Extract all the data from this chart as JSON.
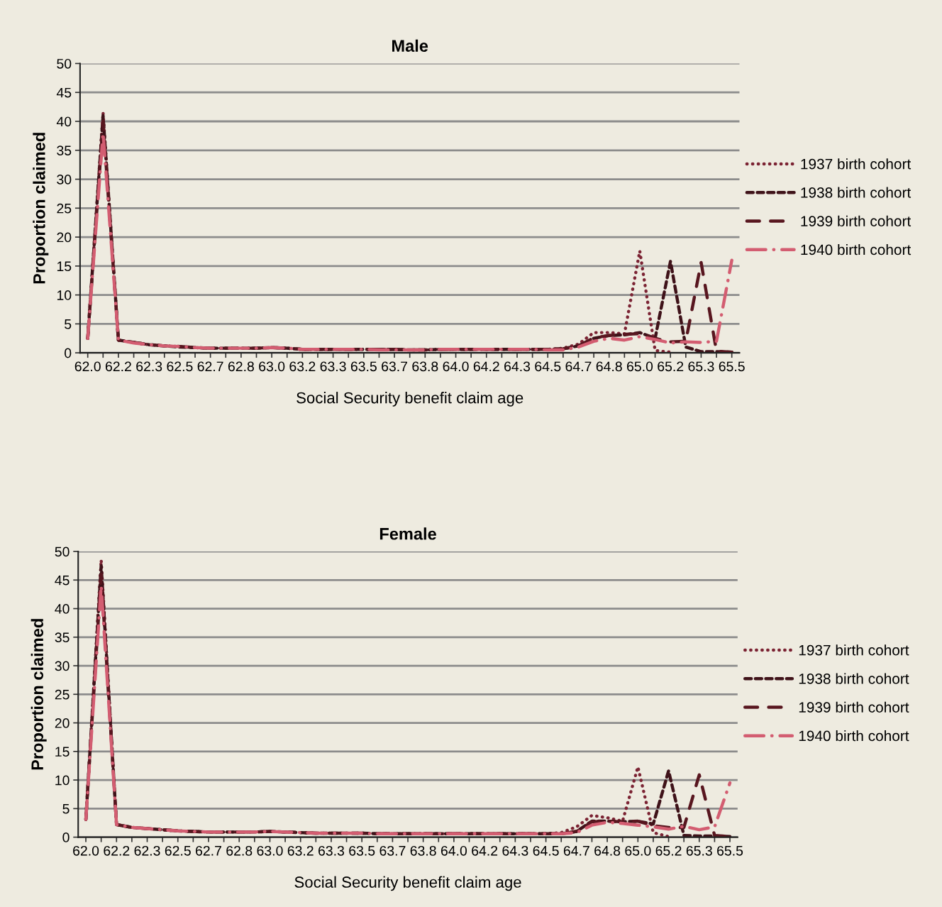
{
  "chart_data": [
    {
      "type": "line",
      "title": "Male",
      "xlabel": "Social Security benefit claim age",
      "ylabel": "Proportion claimed",
      "categories": [
        "62.0",
        null,
        "62.2",
        null,
        "62.3",
        null,
        "62.5",
        null,
        "62.7",
        null,
        "62.8",
        null,
        "63.0",
        null,
        "63.2",
        null,
        "63.3",
        null,
        "63.5",
        null,
        "63.7",
        null,
        "63.8",
        null,
        "64.0",
        null,
        "64.2",
        null,
        "64.3",
        null,
        "64.5",
        null,
        "64.7",
        null,
        "64.8",
        null,
        "65.0",
        null,
        "65.2",
        null,
        "65.3",
        null,
        "65.5"
      ],
      "ylim": [
        0,
        50
      ],
      "yticks": [
        0,
        5,
        10,
        15,
        20,
        25,
        30,
        35,
        40,
        45,
        50
      ],
      "grid": "y",
      "legend": "right",
      "marker": "none",
      "series": [
        {
          "name": "1937 birth cohort",
          "color": "#7b2333",
          "line_style": "dotted",
          "values": [
            2.5,
            41.5,
            2.2,
            1.8,
            1.4,
            1.2,
            1.1,
            0.9,
            0.8,
            0.8,
            0.8,
            0.8,
            0.9,
            0.8,
            0.6,
            0.6,
            0.6,
            0.6,
            0.6,
            0.6,
            0.6,
            0.5,
            0.5,
            0.6,
            0.6,
            0.6,
            0.6,
            0.6,
            0.6,
            0.6,
            0.6,
            0.8,
            1.5,
            3.5,
            3.5,
            3.3,
            17.6,
            0.4,
            0.1,
            null,
            null,
            null,
            null
          ]
        },
        {
          "name": "1938 birth cohort",
          "color": "#3f1219",
          "line_style": "dashed",
          "values": [
            2.5,
            41,
            2.2,
            1.8,
            1.4,
            1.2,
            1.0,
            0.9,
            0.8,
            0.8,
            0.8,
            0.8,
            0.9,
            0.8,
            0.6,
            0.6,
            0.6,
            0.6,
            0.6,
            0.6,
            0.6,
            0.5,
            0.5,
            0.6,
            0.6,
            0.6,
            0.6,
            0.6,
            0.6,
            0.6,
            0.6,
            0.7,
            1.2,
            2.5,
            3.0,
            3.1,
            3.5,
            2.5,
            15.8,
            1.0,
            0.2,
            0.2,
            0.1
          ]
        },
        {
          "name": "1939 birth cohort",
          "color": "#58161f",
          "line_style": "dashed",
          "values": [
            2.5,
            40,
            2.2,
            1.8,
            1.4,
            1.2,
            1.1,
            0.9,
            0.8,
            0.8,
            0.8,
            0.8,
            0.9,
            0.8,
            0.6,
            0.6,
            0.6,
            0.6,
            0.6,
            0.6,
            0.6,
            0.5,
            0.5,
            0.6,
            0.6,
            0.6,
            0.6,
            0.6,
            0.6,
            0.6,
            0.6,
            0.7,
            1.2,
            2.6,
            3.0,
            3.2,
            3.3,
            2.5,
            1.9,
            2.0,
            15.6,
            0.3,
            0.1
          ]
        },
        {
          "name": "1940 birth cohort",
          "color": "#d35d71",
          "line_style": "dashed",
          "values": [
            2.5,
            38,
            2.2,
            1.7,
            1.4,
            1.2,
            1.1,
            0.9,
            0.8,
            0.8,
            0.8,
            0.8,
            0.9,
            0.8,
            0.6,
            0.6,
            0.6,
            0.6,
            0.6,
            0.5,
            0.5,
            0.5,
            0.5,
            0.6,
            0.6,
            0.6,
            0.6,
            0.6,
            0.6,
            0.6,
            0.5,
            0.5,
            1.0,
            2.0,
            2.5,
            2.2,
            2.8,
            2.3,
            1.7,
            1.9,
            1.8,
            2.0,
            16
          ]
        }
      ]
    },
    {
      "type": "line",
      "title": "Female",
      "xlabel": "Social Security benefit claim age",
      "ylabel": "Proportion claimed",
      "categories": [
        "62.0",
        null,
        "62.2",
        null,
        "62.3",
        null,
        "62.5",
        null,
        "62.7",
        null,
        "62.8",
        null,
        "63.0",
        null,
        "63.2",
        null,
        "63.3",
        null,
        "63.5",
        null,
        "63.7",
        null,
        "63.8",
        null,
        "64.0",
        null,
        "64.2",
        null,
        "64.3",
        null,
        "64.5",
        null,
        "64.7",
        null,
        "64.8",
        null,
        "65.0",
        null,
        "65.2",
        null,
        "65.3",
        null,
        "65.5"
      ],
      "ylim": [
        0,
        50
      ],
      "yticks": [
        0,
        5,
        10,
        15,
        20,
        25,
        30,
        35,
        40,
        45,
        50
      ],
      "grid": "y",
      "legend": "right",
      "marker": "none",
      "series": [
        {
          "name": "1937 birth cohort",
          "color": "#7b2333",
          "line_style": "dotted",
          "values": [
            3.1,
            48.5,
            2.2,
            1.7,
            1.5,
            1.3,
            1.1,
            1.0,
            0.9,
            0.9,
            0.9,
            0.9,
            1.0,
            0.9,
            0.8,
            0.7,
            0.7,
            0.7,
            0.7,
            0.6,
            0.6,
            0.6,
            0.6,
            0.6,
            0.6,
            0.6,
            0.6,
            0.6,
            0.6,
            0.6,
            0.6,
            0.8,
            1.8,
            3.8,
            3.4,
            2.8,
            12.3,
            0.8,
            0.1,
            null,
            null,
            null,
            null
          ]
        },
        {
          "name": "1938 birth cohort",
          "color": "#3f1219",
          "line_style": "dashed",
          "values": [
            3.1,
            47.5,
            2.2,
            1.7,
            1.5,
            1.3,
            1.1,
            1.0,
            0.9,
            0.9,
            0.9,
            0.9,
            1.0,
            0.9,
            0.8,
            0.7,
            0.7,
            0.7,
            0.7,
            0.6,
            0.6,
            0.6,
            0.6,
            0.6,
            0.6,
            0.6,
            0.6,
            0.6,
            0.6,
            0.6,
            0.6,
            0.6,
            1.0,
            2.8,
            2.8,
            2.7,
            2.8,
            2.3,
            11.6,
            0.3,
            0.2,
            0.2,
            0.1
          ]
        },
        {
          "name": "1939 birth cohort",
          "color": "#58161f",
          "line_style": "dashed",
          "values": [
            3.1,
            46,
            2.2,
            1.7,
            1.5,
            1.3,
            1.1,
            1.0,
            0.9,
            0.9,
            0.9,
            0.9,
            1.0,
            0.9,
            0.8,
            0.7,
            0.7,
            0.7,
            0.7,
            0.6,
            0.6,
            0.6,
            0.6,
            0.6,
            0.6,
            0.6,
            0.6,
            0.6,
            0.6,
            0.6,
            0.6,
            0.6,
            1.0,
            2.7,
            2.8,
            2.7,
            2.8,
            2.0,
            1.7,
            1.7,
            10.9,
            0.3,
            0.1
          ]
        },
        {
          "name": "1940 birth cohort",
          "color": "#d35d71",
          "line_style": "dashed",
          "values": [
            3.1,
            44,
            2.2,
            1.7,
            1.5,
            1.3,
            1.1,
            1.0,
            0.9,
            0.9,
            0.9,
            0.9,
            1.0,
            0.9,
            0.8,
            0.7,
            0.7,
            0.7,
            0.7,
            0.6,
            0.6,
            0.6,
            0.6,
            0.6,
            0.6,
            0.6,
            0.6,
            0.6,
            0.6,
            0.6,
            0.6,
            0.6,
            0.8,
            2.1,
            2.6,
            2.4,
            2.1,
            1.8,
            1.4,
            1.9,
            1.3,
            1.8,
            9.5
          ]
        }
      ]
    }
  ]
}
